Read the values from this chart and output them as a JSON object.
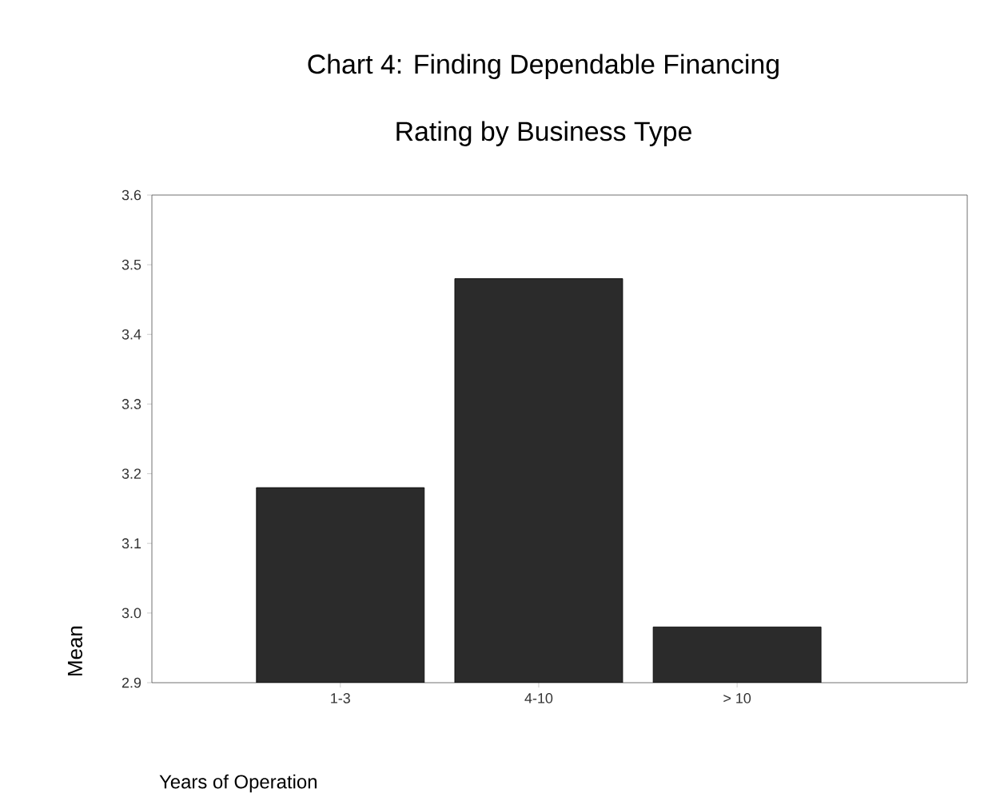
{
  "chart_data": {
    "type": "bar",
    "title": "Chart 4: Finding Dependable Financing",
    "subtitle": "Rating by Business Type",
    "xlabel": "Years of Operation",
    "ylabel": "Mean",
    "categories": [
      "1-3",
      "4-10",
      "> 10"
    ],
    "values": [
      3.18,
      3.48,
      2.98
    ],
    "color": "#2b2b2b",
    "ylim": [
      2.9,
      3.6
    ],
    "yticks": [
      2.9,
      {
        "value": 3.0,
        "label": "3.0"
      },
      3.1,
      3.2,
      3.3,
      3.4,
      3.5,
      3.6
    ]
  }
}
